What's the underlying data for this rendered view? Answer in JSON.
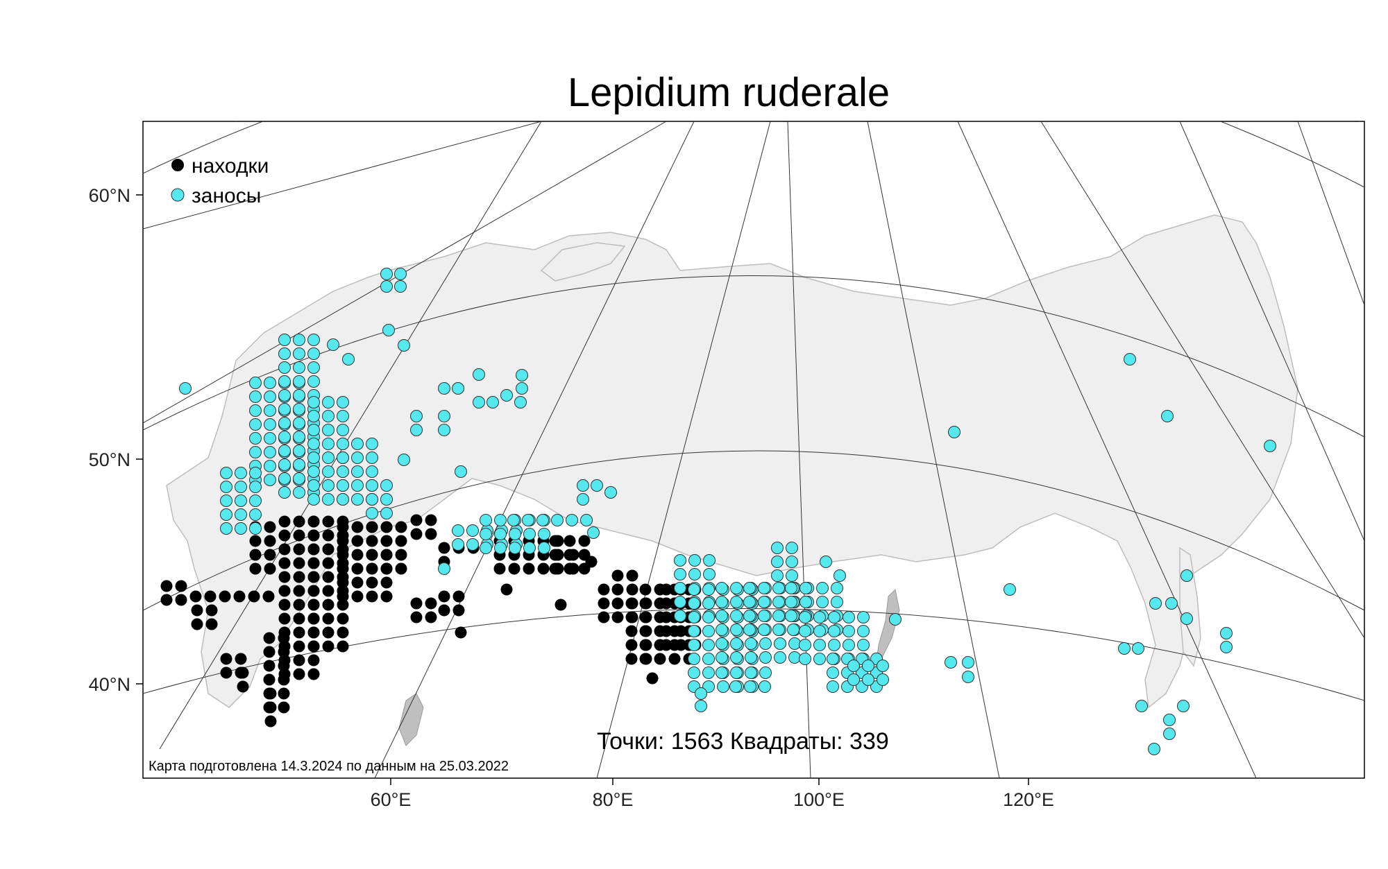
{
  "map": {
    "title": "Lepidium ruderale",
    "legend": {
      "finds_label": "находки",
      "introductions_label": "заносы"
    },
    "stats": "Точки: 1563 Квадраты: 339",
    "credit": "Карта подготовлена 14.3.2024 по данным на 25.03.2022",
    "lat_labels": [
      "60°N",
      "50°N",
      "40°N"
    ],
    "lon_labels": [
      "60°E",
      "80°E",
      "100°E",
      "120°E"
    ],
    "colors": {
      "finds": "#000000",
      "introductions": "#55e8ee",
      "land": "#efefef",
      "graticule": "#333333",
      "border": "#000000"
    }
  }
}
